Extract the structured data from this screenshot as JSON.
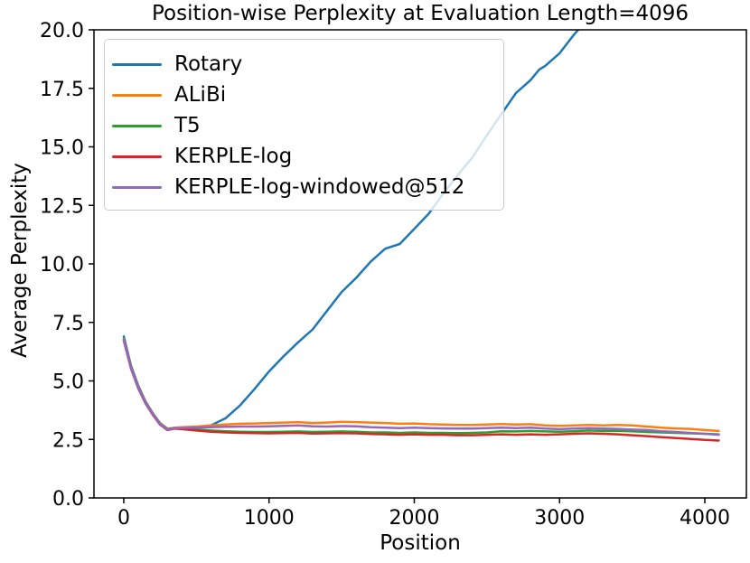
{
  "chart_data": {
    "type": "line",
    "title": "Position-wise Perplexity at Evaluation Length=4096",
    "xlabel": "Position",
    "ylabel": "Average Perplexity",
    "xlim": [
      -205,
      4286
    ],
    "ylim": [
      0,
      20
    ],
    "x_ticks": [
      0,
      1000,
      2000,
      3000,
      4000
    ],
    "x_tick_labels": [
      "0",
      "1000",
      "2000",
      "3000",
      "4000"
    ],
    "y_ticks": [
      0.0,
      2.5,
      5.0,
      7.5,
      10.0,
      12.5,
      15.0,
      17.5,
      20.0
    ],
    "y_tick_labels": [
      "0.0",
      "2.5",
      "5.0",
      "7.5",
      "10.0",
      "12.5",
      "15.0",
      "17.5",
      "20.0"
    ],
    "grid": false,
    "legend_position": "upper-left",
    "axis_color": "#000000",
    "legend_border_color": "#cccccc",
    "series": [
      {
        "name": "Rotary",
        "color": "#1f77b4",
        "x": [
          0,
          50,
          100,
          150,
          200,
          250,
          300,
          350,
          400,
          500,
          600,
          700,
          800,
          900,
          1000,
          1100,
          1200,
          1300,
          1400,
          1500,
          1600,
          1700,
          1800,
          1900,
          2000,
          2100,
          2200,
          2300,
          2400,
          2500,
          2600,
          2700,
          2800,
          2860,
          2900,
          3000,
          3100,
          3150
        ],
        "y": [
          6.9,
          5.65,
          4.8,
          4.12,
          3.62,
          3.2,
          2.96,
          2.98,
          3.0,
          3.03,
          3.1,
          3.4,
          3.95,
          4.65,
          5.4,
          6.05,
          6.65,
          7.2,
          8.0,
          8.8,
          9.4,
          10.1,
          10.65,
          10.85,
          11.5,
          12.15,
          13.0,
          13.8,
          14.55,
          15.5,
          16.4,
          17.3,
          17.85,
          18.3,
          18.45,
          19.0,
          19.8,
          20.15
        ]
      },
      {
        "name": "ALiBi",
        "color": "#ff7f0e",
        "x": [
          0,
          50,
          100,
          150,
          200,
          250,
          300,
          350,
          400,
          500,
          600,
          700,
          800,
          900,
          1000,
          1100,
          1200,
          1300,
          1400,
          1500,
          1600,
          1700,
          1800,
          1900,
          2000,
          2100,
          2200,
          2300,
          2400,
          2500,
          2600,
          2700,
          2800,
          2900,
          3000,
          3100,
          3200,
          3300,
          3400,
          3500,
          3600,
          3700,
          3800,
          3900,
          4000,
          4096
        ],
        "y": [
          6.8,
          5.6,
          4.75,
          4.1,
          3.6,
          3.18,
          2.95,
          3.0,
          3.02,
          3.05,
          3.1,
          3.14,
          3.17,
          3.18,
          3.2,
          3.22,
          3.24,
          3.2,
          3.22,
          3.25,
          3.24,
          3.22,
          3.2,
          3.17,
          3.18,
          3.15,
          3.14,
          3.12,
          3.12,
          3.14,
          3.16,
          3.14,
          3.15,
          3.1,
          3.08,
          3.1,
          3.12,
          3.1,
          3.12,
          3.1,
          3.05,
          3.0,
          2.97,
          2.95,
          2.9,
          2.86
        ]
      },
      {
        "name": "T5",
        "color": "#2ca02c",
        "x": [
          0,
          50,
          100,
          150,
          200,
          250,
          300,
          350,
          400,
          500,
          600,
          700,
          800,
          900,
          1000,
          1100,
          1200,
          1300,
          1400,
          1500,
          1600,
          1700,
          1800,
          1900,
          2000,
          2100,
          2200,
          2300,
          2400,
          2500,
          2600,
          2700,
          2800,
          2900,
          3000,
          3100,
          3200,
          3300,
          3400,
          3500,
          3600,
          3700,
          3800,
          3900,
          4000,
          4096
        ],
        "y": [
          6.78,
          5.57,
          4.72,
          4.07,
          3.58,
          3.16,
          2.93,
          2.99,
          2.97,
          2.92,
          2.88,
          2.85,
          2.83,
          2.82,
          2.82,
          2.83,
          2.84,
          2.82,
          2.83,
          2.84,
          2.83,
          2.8,
          2.8,
          2.78,
          2.8,
          2.78,
          2.78,
          2.77,
          2.78,
          2.8,
          2.85,
          2.84,
          2.86,
          2.84,
          2.83,
          2.85,
          2.88,
          2.86,
          2.87,
          2.85,
          2.82,
          2.8,
          2.78,
          2.76,
          2.74,
          2.72
        ]
      },
      {
        "name": "KERPLE-log",
        "color": "#d62728",
        "x": [
          0,
          50,
          100,
          150,
          200,
          250,
          300,
          350,
          400,
          500,
          600,
          700,
          800,
          900,
          1000,
          1100,
          1200,
          1300,
          1400,
          1500,
          1600,
          1700,
          1800,
          1900,
          2000,
          2100,
          2200,
          2300,
          2400,
          2500,
          2600,
          2700,
          2800,
          2900,
          3000,
          3100,
          3200,
          3300,
          3400,
          3500,
          3600,
          3700,
          3800,
          3900,
          4000,
          4096
        ],
        "y": [
          6.72,
          5.52,
          4.68,
          4.03,
          3.55,
          3.13,
          2.9,
          2.96,
          2.94,
          2.88,
          2.83,
          2.8,
          2.78,
          2.77,
          2.76,
          2.77,
          2.78,
          2.75,
          2.76,
          2.77,
          2.76,
          2.73,
          2.72,
          2.7,
          2.72,
          2.7,
          2.7,
          2.68,
          2.68,
          2.7,
          2.72,
          2.7,
          2.72,
          2.7,
          2.72,
          2.74,
          2.76,
          2.74,
          2.72,
          2.68,
          2.64,
          2.6,
          2.56,
          2.52,
          2.48,
          2.45
        ]
      },
      {
        "name": "KERPLE-log-windowed@512",
        "color": "#9467bd",
        "x": [
          0,
          50,
          100,
          150,
          200,
          250,
          300,
          350,
          400,
          500,
          600,
          700,
          800,
          900,
          1000,
          1100,
          1200,
          1300,
          1400,
          1500,
          1600,
          1700,
          1800,
          1900,
          2000,
          2100,
          2200,
          2300,
          2400,
          2500,
          2600,
          2700,
          2800,
          2900,
          3000,
          3100,
          3200,
          3300,
          3400,
          3500,
          3600,
          3700,
          3800,
          3900,
          4000,
          4096
        ],
        "y": [
          6.75,
          5.55,
          4.7,
          4.05,
          3.57,
          3.15,
          2.92,
          2.98,
          2.99,
          3.0,
          3.02,
          3.04,
          3.05,
          3.05,
          3.06,
          3.08,
          3.1,
          3.06,
          3.05,
          3.07,
          3.06,
          3.02,
          3.0,
          2.98,
          3.0,
          2.98,
          2.97,
          2.96,
          2.96,
          2.98,
          3.0,
          2.98,
          3.0,
          2.96,
          2.94,
          2.96,
          2.98,
          2.96,
          2.95,
          2.92,
          2.9,
          2.85,
          2.82,
          2.78,
          2.74,
          2.7
        ]
      }
    ]
  }
}
